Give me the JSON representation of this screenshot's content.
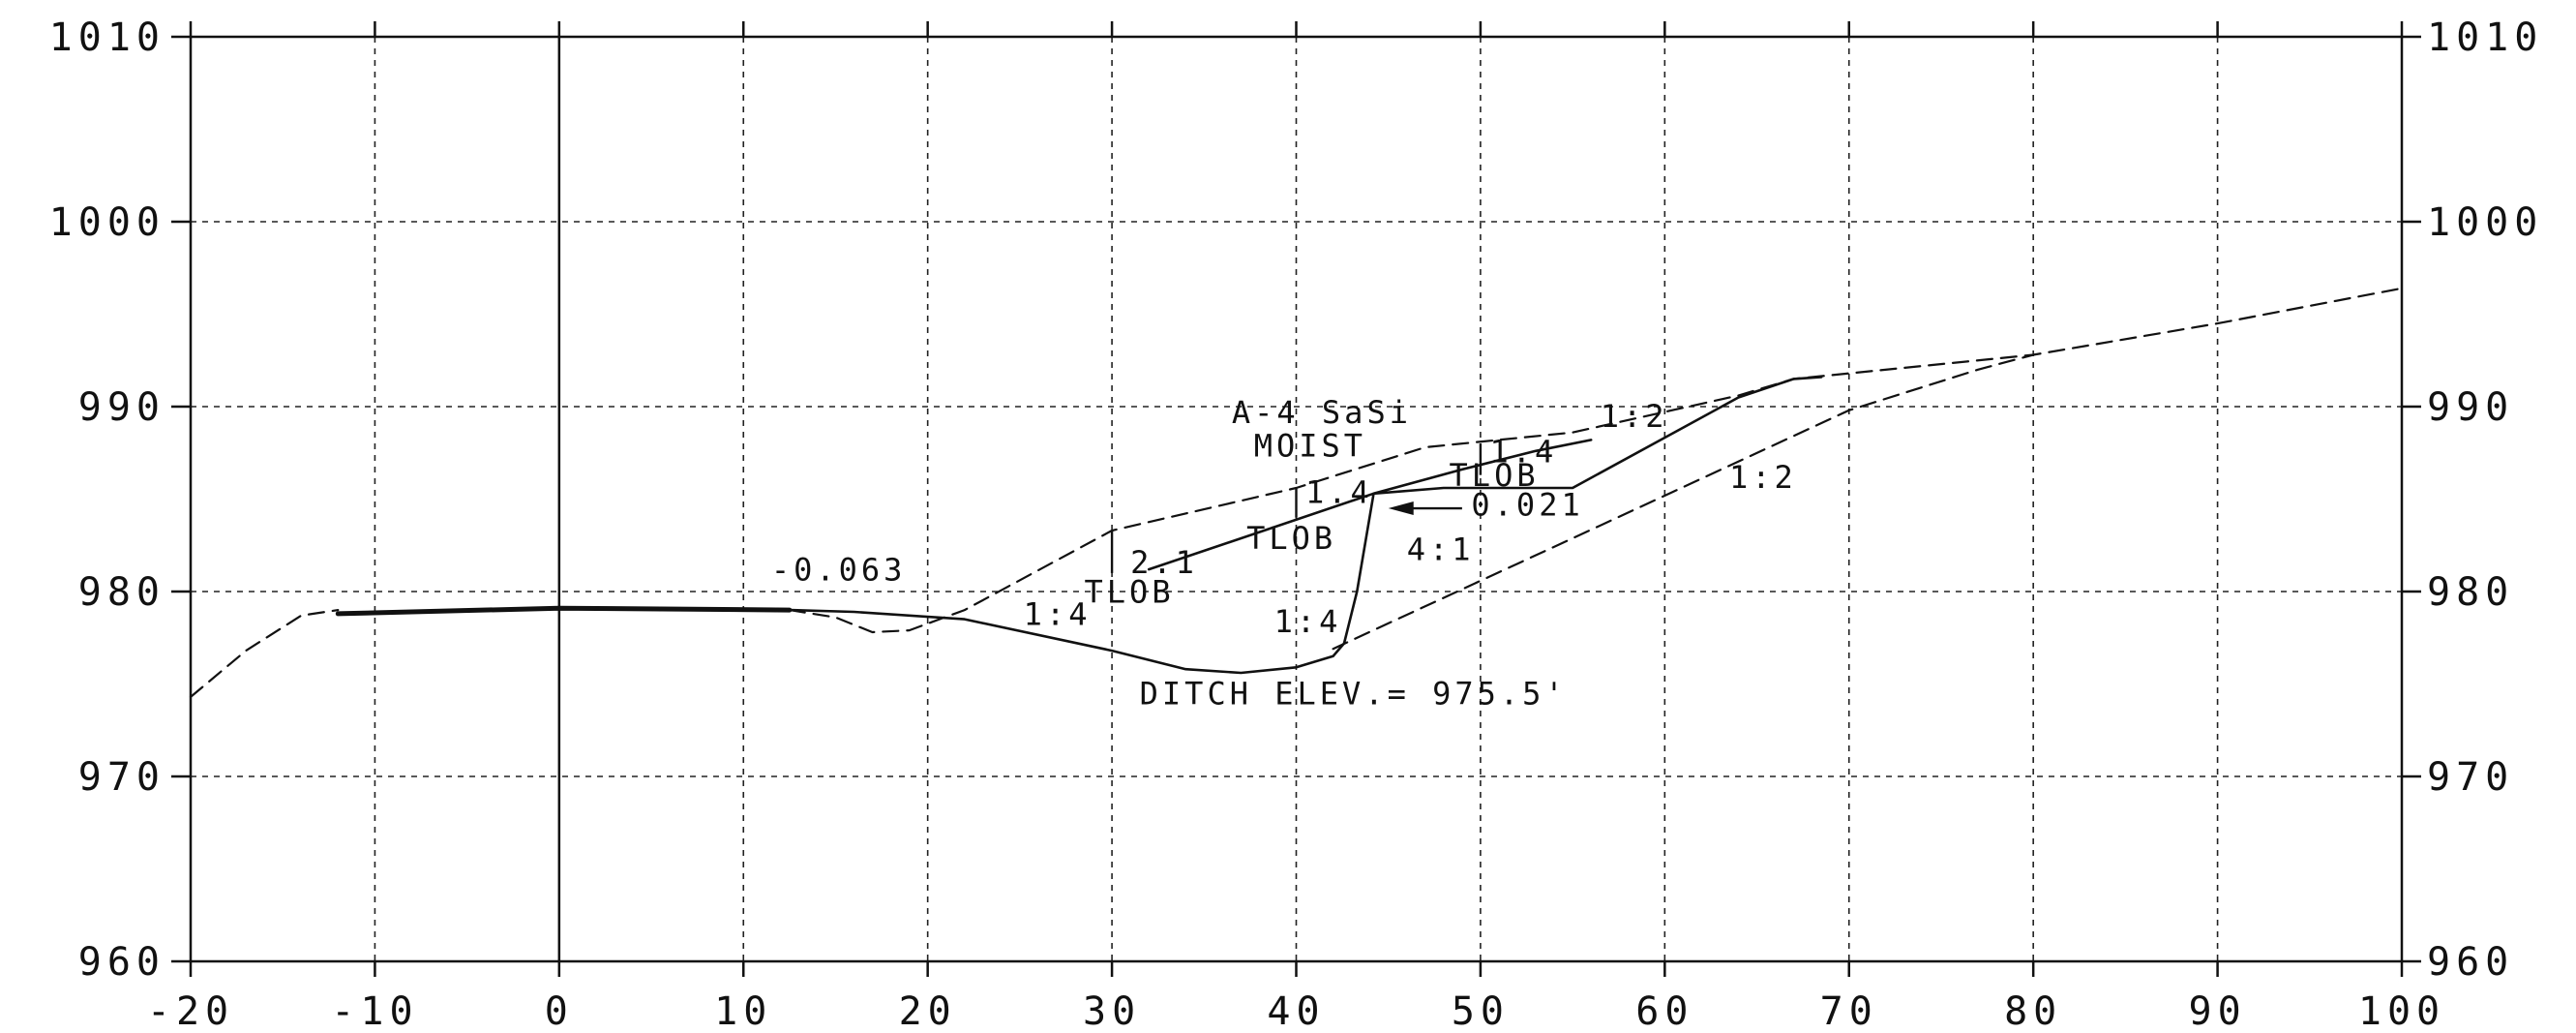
{
  "chart_data": {
    "type": "line",
    "title": "",
    "xlabel": "",
    "ylabel": "",
    "xlim": [
      -20,
      100
    ],
    "ylim": [
      960,
      1010
    ],
    "x_ticks": [
      -20,
      -10,
      0,
      10,
      20,
      30,
      40,
      50,
      60,
      70,
      80,
      90,
      100
    ],
    "y_ticks": [
      960,
      970,
      980,
      990,
      1000,
      1010
    ],
    "x_tick_labels": [
      "-20",
      "-10",
      "0",
      "10",
      "20",
      "30",
      "40",
      "50",
      "60",
      "70",
      "80",
      "90",
      "100"
    ],
    "y_tick_labels": [
      "960",
      "970",
      "980",
      "990",
      "1000",
      "1010"
    ],
    "grid": true,
    "series": [
      {
        "style": "solid-thick",
        "points": [
          [
            -12,
            978.8
          ],
          [
            0,
            979.1
          ],
          [
            12.5,
            979.0
          ]
        ]
      },
      {
        "style": "solid",
        "points": [
          [
            12.5,
            979.0
          ],
          [
            16,
            978.9
          ],
          [
            22,
            978.5
          ],
          [
            30,
            976.8
          ],
          [
            34,
            975.8
          ],
          [
            37,
            975.6
          ],
          [
            40,
            975.9
          ],
          [
            42,
            976.5
          ],
          [
            42.6,
            977.2
          ],
          [
            43.3,
            980.0
          ],
          [
            44.2,
            985.3
          ],
          [
            48,
            985.6
          ],
          [
            55,
            985.6
          ],
          [
            64,
            990.5
          ],
          [
            67,
            991.5
          ],
          [
            68.5,
            991.6
          ]
        ]
      },
      {
        "style": "solid",
        "points": [
          [
            32,
            981.2
          ],
          [
            44.2,
            985.3
          ],
          [
            49,
            986.6
          ],
          [
            53,
            987.6
          ],
          [
            56,
            988.2
          ]
        ]
      },
      {
        "style": "dashed",
        "points": [
          [
            -20,
            974.3
          ],
          [
            -17,
            976.8
          ],
          [
            -14,
            978.7
          ],
          [
            -12,
            979.0
          ]
        ]
      },
      {
        "style": "dashed",
        "points": [
          [
            12.5,
            979.0
          ],
          [
            15,
            978.6
          ],
          [
            17,
            977.8
          ],
          [
            19,
            977.9
          ],
          [
            22,
            979.0
          ],
          [
            30,
            983.3
          ],
          [
            40,
            985.6
          ],
          [
            47,
            987.8
          ],
          [
            55,
            988.6
          ],
          [
            64,
            990.6
          ],
          [
            67,
            991.5
          ],
          [
            80,
            992.8
          ],
          [
            90,
            994.5
          ],
          [
            100,
            996.4
          ]
        ]
      },
      {
        "style": "dashed",
        "points": [
          [
            42,
            976.9
          ],
          [
            57,
            983.8
          ],
          [
            70,
            989.8
          ],
          [
            77,
            992.0
          ],
          [
            80,
            992.8
          ]
        ]
      }
    ],
    "annotations": [
      {
        "text": "-0.063",
        "x": 11.5,
        "y": 980.6
      },
      {
        "text": "A-4 SaSi",
        "x": 36.5,
        "y": 989.1
      },
      {
        "text": "MOIST",
        "x": 37.7,
        "y": 987.3
      },
      {
        "text": "1:2",
        "x": 56.5,
        "y": 988.9
      },
      {
        "text": "1.4",
        "x": 50.5,
        "y": 987.0
      },
      {
        "text": "TLOB",
        "x": 48.3,
        "y": 985.7
      },
      {
        "text": "1:2",
        "x": 63.5,
        "y": 985.6
      },
      {
        "text": "1.4",
        "x": 40.5,
        "y": 984.8
      },
      {
        "text": "0.021",
        "x": 49.5,
        "y": 984.1
      },
      {
        "text": "TLOB",
        "x": 37.3,
        "y": 982.3
      },
      {
        "text": "4:1",
        "x": 46.0,
        "y": 981.7
      },
      {
        "text": "2.1",
        "x": 31.0,
        "y": 981.0
      },
      {
        "text": "TLOB",
        "x": 28.5,
        "y": 979.4
      },
      {
        "text": "1:4",
        "x": 25.2,
        "y": 978.2
      },
      {
        "text": "1:4",
        "x": 38.8,
        "y": 977.8
      },
      {
        "text": "DITCH ELEV.= 975.5'",
        "x": 31.5,
        "y": 973.9
      }
    ],
    "arrow": {
      "from": [
        49.0,
        984.5
      ],
      "to": [
        45.0,
        984.5
      ]
    }
  }
}
